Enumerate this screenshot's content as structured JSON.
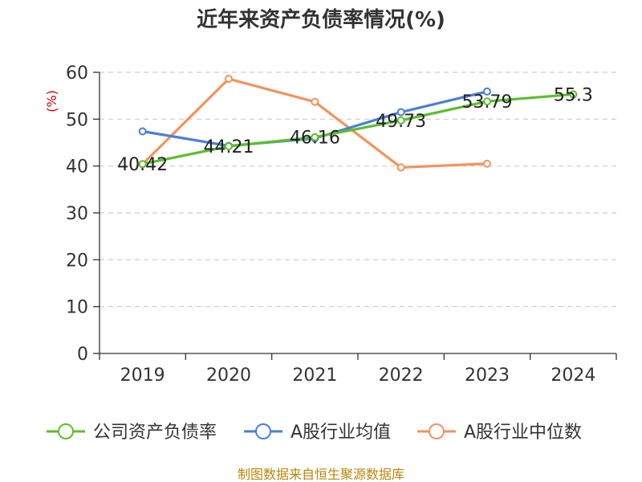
{
  "chart_data": {
    "type": "line",
    "title": "近年来资产负债率情况(%)",
    "ylabel": "(%)",
    "categories": [
      "2019",
      "2020",
      "2021",
      "2022",
      "2023",
      "2024"
    ],
    "ylim": [
      0,
      60
    ],
    "yticks": [
      0,
      10,
      20,
      30,
      40,
      50,
      60
    ],
    "grid": true,
    "legend_position": "bottom",
    "series": [
      {
        "name": "公司资产负债率",
        "color": "#5cbe2a",
        "values": [
          40.42,
          44.21,
          46.16,
          49.73,
          53.79,
          55.3
        ],
        "labels": [
          "40.42",
          "44.21",
          "46.16",
          "49.73",
          "53.79",
          "55.3"
        ]
      },
      {
        "name": "A股行业均值",
        "color": "#4a7fd8",
        "values": [
          47.4,
          44.3,
          45.9,
          51.5,
          55.9,
          null
        ]
      },
      {
        "name": "A股行业中位数",
        "color": "#f4925e",
        "values": [
          40.4,
          58.6,
          53.7,
          39.7,
          40.5,
          null
        ]
      }
    ]
  },
  "source": "制图数据来自恒生聚源数据库"
}
